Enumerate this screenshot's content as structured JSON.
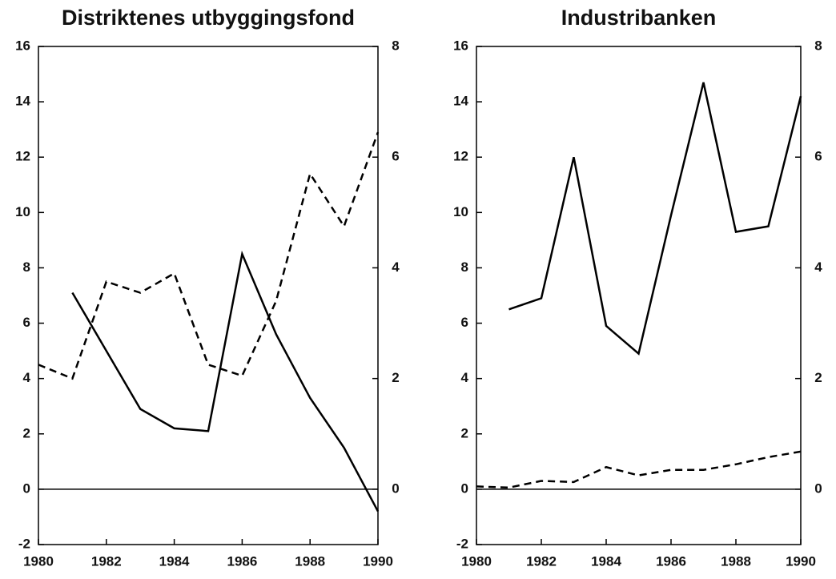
{
  "chart_data": [
    {
      "type": "line",
      "title": "Distriktenes utbyggingsfond",
      "x": [
        1980,
        1981,
        1982,
        1983,
        1984,
        1985,
        1986,
        1987,
        1988,
        1989,
        1990
      ],
      "xlim": [
        1980,
        1990
      ],
      "xticks": [
        1980,
        1982,
        1984,
        1986,
        1988,
        1990
      ],
      "ylim": [
        -2,
        16
      ],
      "yticks": [
        -2,
        0,
        2,
        4,
        6,
        8,
        10,
        12,
        14,
        16
      ],
      "y2lim": [
        -1,
        8
      ],
      "y2ticks": [
        0,
        2,
        4,
        6,
        8
      ],
      "zero_line": true,
      "series": [
        {
          "color": "#000000",
          "dash": "solid",
          "values": [
            null,
            7.1,
            5.0,
            2.9,
            2.2,
            2.1,
            8.5,
            5.6,
            3.3,
            1.5,
            -0.8
          ]
        },
        {
          "color": "#000000",
          "dash": "dashed",
          "axis": "y2",
          "values": [
            2.25,
            2.0,
            3.75,
            3.55,
            3.9,
            2.25,
            2.05,
            3.4,
            5.7,
            4.75,
            6.45
          ]
        }
      ]
    },
    {
      "type": "line",
      "title": "Industribanken",
      "x": [
        1980,
        1981,
        1982,
        1983,
        1984,
        1985,
        1986,
        1987,
        1988,
        1989,
        1990
      ],
      "xlim": [
        1980,
        1990
      ],
      "xticks": [
        1980,
        1982,
        1984,
        1986,
        1988,
        1990
      ],
      "ylim": [
        -2,
        16
      ],
      "yticks": [
        -2,
        0,
        2,
        4,
        6,
        8,
        10,
        12,
        14,
        16
      ],
      "y2lim": [
        -1,
        8
      ],
      "y2ticks": [
        0,
        2,
        4,
        6,
        8
      ],
      "zero_line": true,
      "series": [
        {
          "color": "#000000",
          "dash": "solid",
          "values": [
            null,
            6.5,
            6.9,
            12.0,
            5.9,
            4.9,
            9.9,
            14.7,
            9.3,
            9.5,
            14.2
          ]
        },
        {
          "color": "#000000",
          "dash": "dashed",
          "axis": "y2",
          "values": [
            0.05,
            0.03,
            0.15,
            0.13,
            0.4,
            0.25,
            0.35,
            0.35,
            0.45,
            0.58,
            0.68
          ]
        }
      ]
    }
  ]
}
